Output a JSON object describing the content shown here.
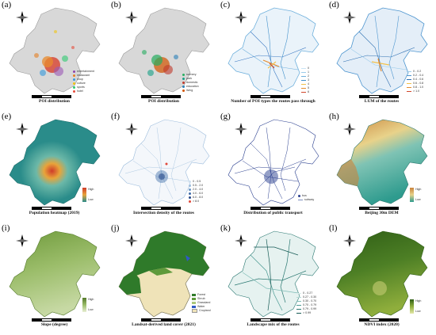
{
  "colors": {
    "region_gray": "#d8d8d8",
    "region_line": "#9a9a9a",
    "poi_red": "#d84b3a",
    "poi_orange": "#e88b2e",
    "route_blue": "#3a78c2",
    "heat_teal": "#3aa09a",
    "heat_red": "#cf3b2a",
    "dem_green": "#2e9b8e",
    "dem_brown": "#c9833b",
    "slope_green": "#7ca84a",
    "forest_green": "#2f7a2a",
    "ndvi_dark": "#3d6e1f"
  },
  "panels": [
    {
      "label": "(a)",
      "caption": "POI distribution",
      "legend": [
        {
          "name": "entertainment",
          "color": "#8e44ad"
        },
        {
          "name": "restaurant",
          "color": "#e67e22"
        },
        {
          "name": "shop",
          "color": "#3498db"
        },
        {
          "name": "culture",
          "color": "#f1c40f"
        },
        {
          "name": "sports",
          "color": "#2ecc71"
        },
        {
          "name": "hotel",
          "color": "#e74c3c"
        }
      ]
    },
    {
      "label": "(b)",
      "caption": "POI distribution",
      "legend": [
        {
          "name": "scenery",
          "color": "#27ae60"
        },
        {
          "name": "park",
          "color": "#16a085"
        },
        {
          "name": "domestic",
          "color": "#c0392b"
        },
        {
          "name": "education",
          "color": "#2980b9"
        },
        {
          "name": "living",
          "color": "#d35400"
        }
      ]
    },
    {
      "label": "(c)",
      "caption": "Number of POI types the routes pass through",
      "legend": [
        {
          "name": "0",
          "color": "#c8e3f5"
        },
        {
          "name": "1",
          "color": "#9ccbe9"
        },
        {
          "name": "2",
          "color": "#6fb0dc"
        },
        {
          "name": "3",
          "color": "#4190cb"
        },
        {
          "name": "4",
          "color": "#f2c14a"
        },
        {
          "name": "5",
          "color": "#e58a2c"
        },
        {
          "name": "6",
          "color": "#d0452a"
        }
      ]
    },
    {
      "label": "(d)",
      "caption": "LUM of the routes",
      "legend": [
        {
          "name": "0 - 0.2",
          "color": "#9ccbe9"
        },
        {
          "name": "0.2 - 0.4",
          "color": "#4d95cf"
        },
        {
          "name": "0.4 - 0.6",
          "color": "#2b6db0"
        },
        {
          "name": "0.6 - 0.8",
          "color": "#f2c14a"
        },
        {
          "name": "0.8 - 1.0",
          "color": "#e58a2c"
        },
        {
          "name": "> 1.0",
          "color": "#d0452a"
        }
      ]
    },
    {
      "label": "(e)",
      "caption": "Population heatmap (2019)",
      "legend_high": "High",
      "legend_low": "Low"
    },
    {
      "label": "(f)",
      "caption": "Intersection density of the routes",
      "legend": [
        {
          "name": "0 - 0.5",
          "color": "#cfe0ef"
        },
        {
          "name": "0.5 - 2.0",
          "color": "#9cbcdc"
        },
        {
          "name": "2.0 - 4.0",
          "color": "#6b95c6"
        },
        {
          "name": "4.0 - 6.0",
          "color": "#3e6ca9"
        },
        {
          "name": "6.0 - 8.0",
          "color": "#27498a"
        },
        {
          "name": "> 8.0",
          "color": "#e0483a"
        }
      ]
    },
    {
      "label": "(g)",
      "caption": "Distribution of public transport",
      "legend": [
        {
          "name": "bus",
          "color": "#2a3f8f"
        },
        {
          "name": "subway",
          "color": "#7f8fbf"
        }
      ]
    },
    {
      "label": "(h)",
      "caption": "Beijing 30m DEM",
      "legend_high": "High",
      "legend_low": "Low"
    },
    {
      "label": "(i)",
      "caption": "Slope (degree)",
      "legend_high": "High",
      "legend_low": "Low"
    },
    {
      "label": "(j)",
      "caption": "Landsat-derived land cover (2021)",
      "legend": [
        {
          "name": "Forest",
          "color": "#2f7a2a"
        },
        {
          "name": "Shrub",
          "color": "#5e9a3b"
        },
        {
          "name": "Grassland",
          "color": "#a9c77a"
        },
        {
          "name": "Water",
          "color": "#2f59c4"
        },
        {
          "name": "Cropland",
          "color": "#efe3b8"
        }
      ]
    },
    {
      "label": "(k)",
      "caption": "Landscape mix of the routes",
      "legend": [
        {
          "name": "0 - 0.27",
          "color": "#d9ecea"
        },
        {
          "name": "0.27 - 0.30",
          "color": "#b3d9d4"
        },
        {
          "name": "0.30 - 0.70",
          "color": "#7fbcb6"
        },
        {
          "name": "0.70 - 0.79",
          "color": "#4b9a93"
        },
        {
          "name": "0.79 - 0.99",
          "color": "#2a7871"
        },
        {
          "name": "> 0.99",
          "color": "#155a54"
        }
      ]
    },
    {
      "label": "(l)",
      "caption": "NDVI index (2020)",
      "legend_high": "High",
      "legend_low": "Low"
    }
  ]
}
